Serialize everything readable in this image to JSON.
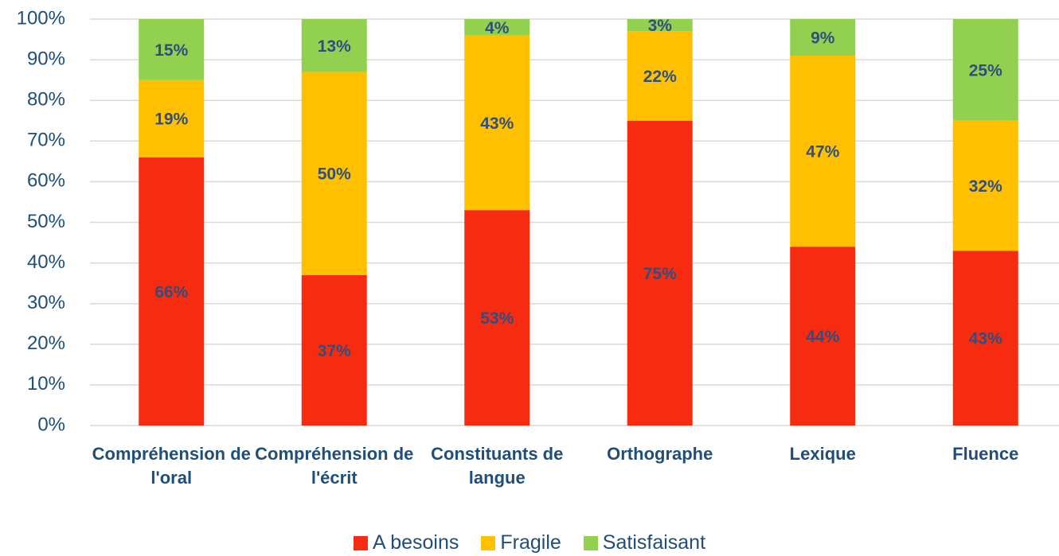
{
  "chart_data": {
    "type": "stacked_bar",
    "categories": [
      "Compréhension de l'oral",
      "Compréhension de l'écrit",
      "Constituants de langue",
      "Orthographe",
      "Lexique",
      "Fluence"
    ],
    "series": [
      {
        "name": "A besoins",
        "color": "#f62b10",
        "values": [
          66,
          37,
          53,
          75,
          44,
          43
        ],
        "value_labels": [
          "66%",
          "37%",
          "53%",
          "75%",
          "44%",
          "43%"
        ]
      },
      {
        "name": "Fragile",
        "color": "#ffc000",
        "values": [
          19,
          50,
          43,
          22,
          47,
          32
        ],
        "value_labels": [
          "19%",
          "50%",
          "43%",
          "22%",
          "47%",
          "32%"
        ]
      },
      {
        "name": "Satisfaisant",
        "color": "#92d050",
        "values": [
          15,
          13,
          4,
          3,
          9,
          25
        ],
        "value_labels": [
          "15%",
          "13%",
          "4%",
          "3%",
          "9%",
          "25%"
        ]
      }
    ],
    "ylim": [
      0,
      100
    ],
    "yticks": [
      {
        "value": 0,
        "label": "0%"
      },
      {
        "value": 10,
        "label": "10%"
      },
      {
        "value": 20,
        "label": "20%"
      },
      {
        "value": 30,
        "label": "30%"
      },
      {
        "value": 40,
        "label": "40%"
      },
      {
        "value": 50,
        "label": "50%"
      },
      {
        "value": 60,
        "label": "60%"
      },
      {
        "value": 70,
        "label": "70%"
      },
      {
        "value": 80,
        "label": "80%"
      },
      {
        "value": 90,
        "label": "90%"
      },
      {
        "value": 100,
        "label": "100%"
      }
    ],
    "grid": true
  }
}
